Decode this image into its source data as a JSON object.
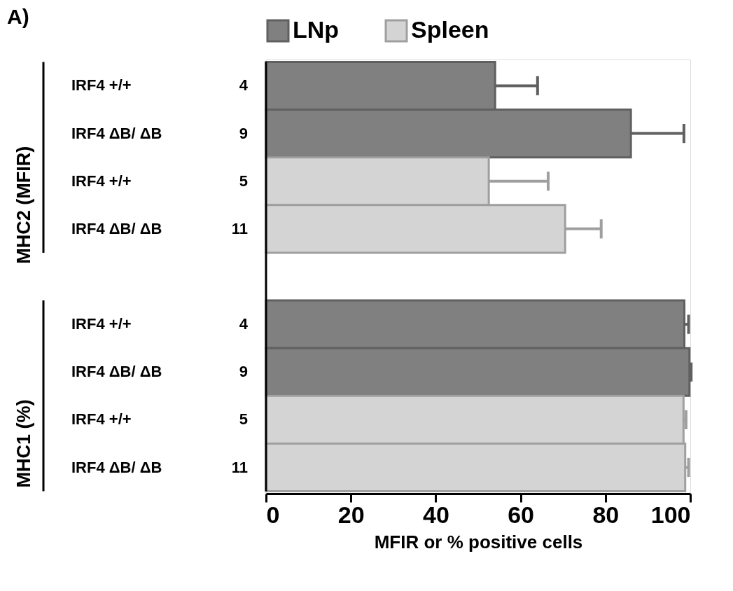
{
  "chart_data": {
    "type": "bar",
    "orientation": "horizontal",
    "categories": [
      "IRF4 +/+ 4",
      "IRF4 ΔB/ ΔB 9",
      "IRF4 +/+ 5",
      "IRF4 ΔB/ ΔB 11",
      null,
      "IRF4 +/+ 4",
      "IRF4 ΔB/ ΔB 9",
      "IRF4 +/+ 5",
      "IRF4 ΔB/ ΔB 11"
    ],
    "series": [
      {
        "name": "LNp",
        "color": "#808080",
        "values": [
          54,
          86,
          null,
          null,
          null,
          98.6,
          99.8,
          null,
          null
        ],
        "errors": [
          10,
          12.5,
          null,
          null,
          null,
          1,
          0.4,
          null,
          null
        ]
      },
      {
        "name": "Spleen",
        "color": "#d4d4d4",
        "values": [
          null,
          null,
          52.5,
          70.5,
          null,
          null,
          null,
          98.4,
          98.8
        ],
        "errors": [
          null,
          null,
          14,
          8.5,
          null,
          null,
          null,
          0.6,
          0.8
        ]
      }
    ],
    "xlabel": "MFIR or % positive cells",
    "xlim": [
      0,
      100
    ],
    "xticks": [
      0,
      20,
      40,
      60,
      80,
      100
    ],
    "legend": "top",
    "grid": false,
    "annotations": [
      "A)",
      "MHC2 (MFIR)",
      "MHC1 (%)"
    ]
  }
}
